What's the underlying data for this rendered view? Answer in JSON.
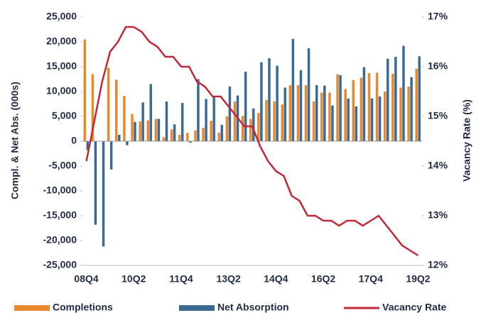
{
  "chart_data": {
    "type": "bar_line",
    "y_label": "Compl. & Net Abs. (000s)",
    "y2_label": "Vacancy Rate (%)",
    "categories": [
      "08Q4",
      null,
      null,
      null,
      null,
      null,
      "10Q2",
      null,
      null,
      null,
      null,
      null,
      "11Q4",
      null,
      null,
      null,
      null,
      null,
      "13Q2",
      null,
      null,
      null,
      null,
      null,
      "14Q4",
      null,
      null,
      null,
      null,
      null,
      "16Q2",
      null,
      null,
      null,
      null,
      null,
      "17Q4",
      null,
      null,
      null,
      null,
      null,
      "19Q2"
    ],
    "series": [
      {
        "name": "Completions",
        "color": "#e8892f",
        "kind": "bar",
        "values": [
          20500,
          13500,
          0,
          14800,
          12400,
          9100,
          5500,
          4000,
          4200,
          4500,
          800,
          2400,
          1300,
          1700,
          2200,
          2700,
          4100,
          1700,
          5000,
          8000,
          5100,
          4500,
          5700,
          8300,
          8000,
          7400,
          11300,
          11300,
          11300,
          8000,
          9800,
          9800,
          13500,
          10500,
          12300,
          12800,
          13700,
          13800,
          10000,
          13600,
          10800,
          11000,
          14600
        ]
      },
      {
        "name": "Net Absorption",
        "color": "#3b6a94",
        "kind": "bar",
        "values": [
          -1800,
          -16800,
          -21200,
          -5700,
          1300,
          -800,
          3900,
          7800,
          11500,
          4500,
          8000,
          3400,
          7700,
          -300,
          12500,
          8500,
          9000,
          3300,
          11000,
          9200,
          14000,
          6600,
          15900,
          16700,
          15200,
          10800,
          20600,
          14300,
          18700,
          11300,
          11200,
          7200,
          13300,
          8600,
          7000,
          14900,
          8600,
          9000,
          16600,
          17000,
          19200,
          12900,
          17100
        ]
      },
      {
        "name": "Vacancy Rate",
        "color": "#c0283a",
        "kind": "line",
        "axis": "y2",
        "values": [
          14.1,
          14.9,
          15.7,
          16.3,
          16.5,
          16.8,
          16.8,
          16.7,
          16.5,
          16.4,
          16.2,
          16.2,
          16.0,
          16.0,
          15.7,
          15.6,
          15.4,
          15.4,
          15.2,
          15.0,
          14.8,
          14.8,
          14.4,
          14.1,
          13.9,
          13.8,
          13.4,
          13.3,
          13.0,
          13.0,
          12.9,
          12.9,
          12.8,
          12.9,
          12.9,
          12.8,
          12.9,
          13.0,
          12.8,
          12.6,
          12.4,
          12.3,
          12.2
        ]
      }
    ],
    "ylim": [
      -25000,
      25000
    ],
    "yticks": [
      {
        "value": -25000,
        "label": "-25,000"
      },
      {
        "value": -20000,
        "label": "-20,000"
      },
      {
        "value": -15000,
        "label": "-15,000"
      },
      {
        "value": -10000,
        "label": "-10,000"
      },
      {
        "value": -5000,
        "label": "-5,000"
      },
      0,
      {
        "value": 5000,
        "label": "5,000"
      },
      {
        "value": 10000,
        "label": "10,000"
      },
      {
        "value": 15000,
        "label": "15,000"
      },
      {
        "value": 20000,
        "label": "20,000"
      },
      {
        "value": 25000,
        "label": "25,000"
      }
    ],
    "y2lim": [
      12,
      17
    ],
    "y2ticks": [
      {
        "value": 12,
        "label": "12%"
      },
      {
        "value": 13,
        "label": "13%"
      },
      {
        "value": 14,
        "label": "14%"
      },
      {
        "value": 15,
        "label": "15%"
      },
      {
        "value": 16,
        "label": "16%"
      },
      {
        "value": 17,
        "label": "17%"
      }
    ],
    "legend": "bottom"
  }
}
